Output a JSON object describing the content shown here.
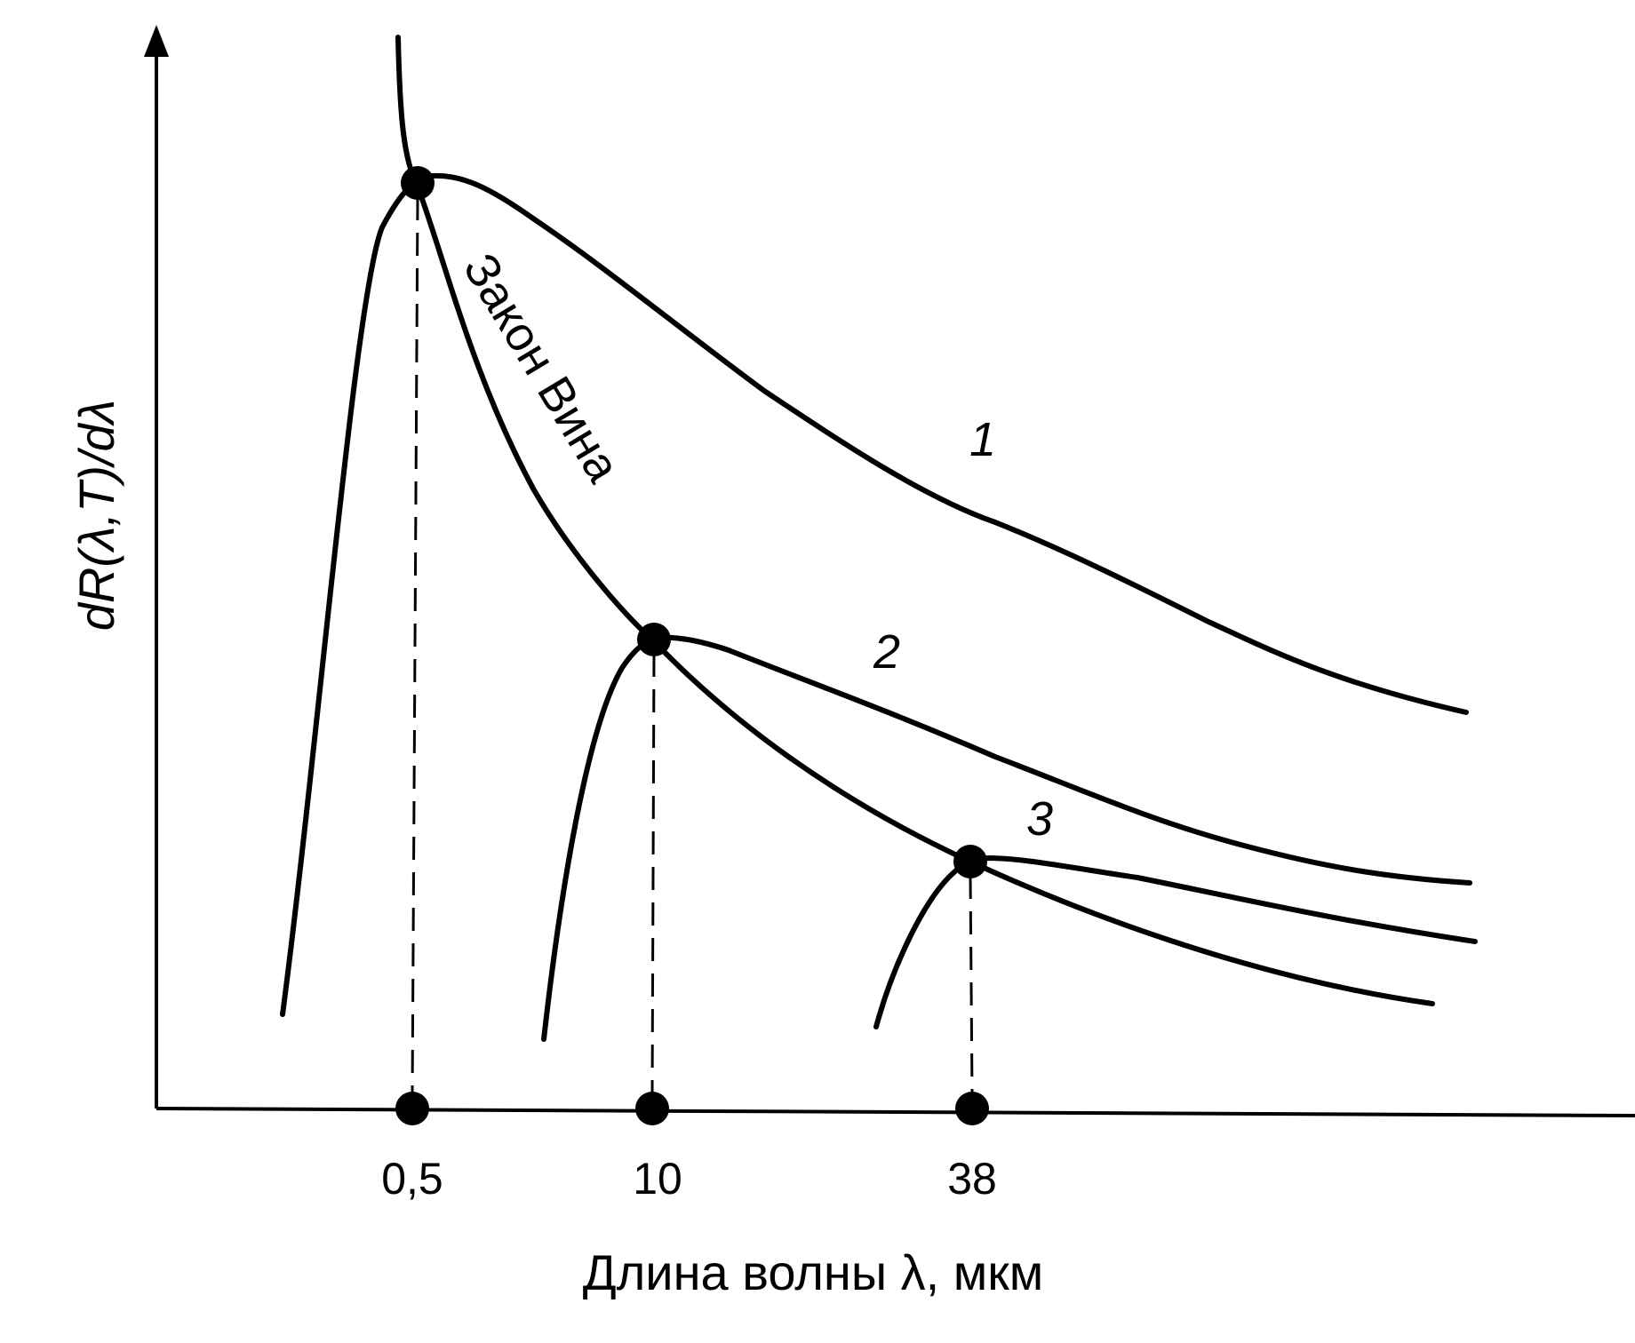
{
  "chart_data": {
    "type": "line",
    "title": "",
    "xlabel": "Длина волны λ, мкм",
    "ylabel": "dR(λ,T)/dλ",
    "x_scale": "non-uniform (schematic)",
    "x_ticks": [
      "0,5",
      "10",
      "38"
    ],
    "grid": false,
    "legend": "none",
    "series": [
      {
        "label": "1",
        "peak_x": 0.5
      },
      {
        "label": "2",
        "peak_x": 10
      },
      {
        "label": "3",
        "peak_x": 38
      }
    ],
    "annotations": [
      {
        "text": "Закон Вина",
        "type": "envelope curve through the three peaks"
      }
    ],
    "style": {
      "line_color": "#000000",
      "background": "#ffffff"
    }
  }
}
